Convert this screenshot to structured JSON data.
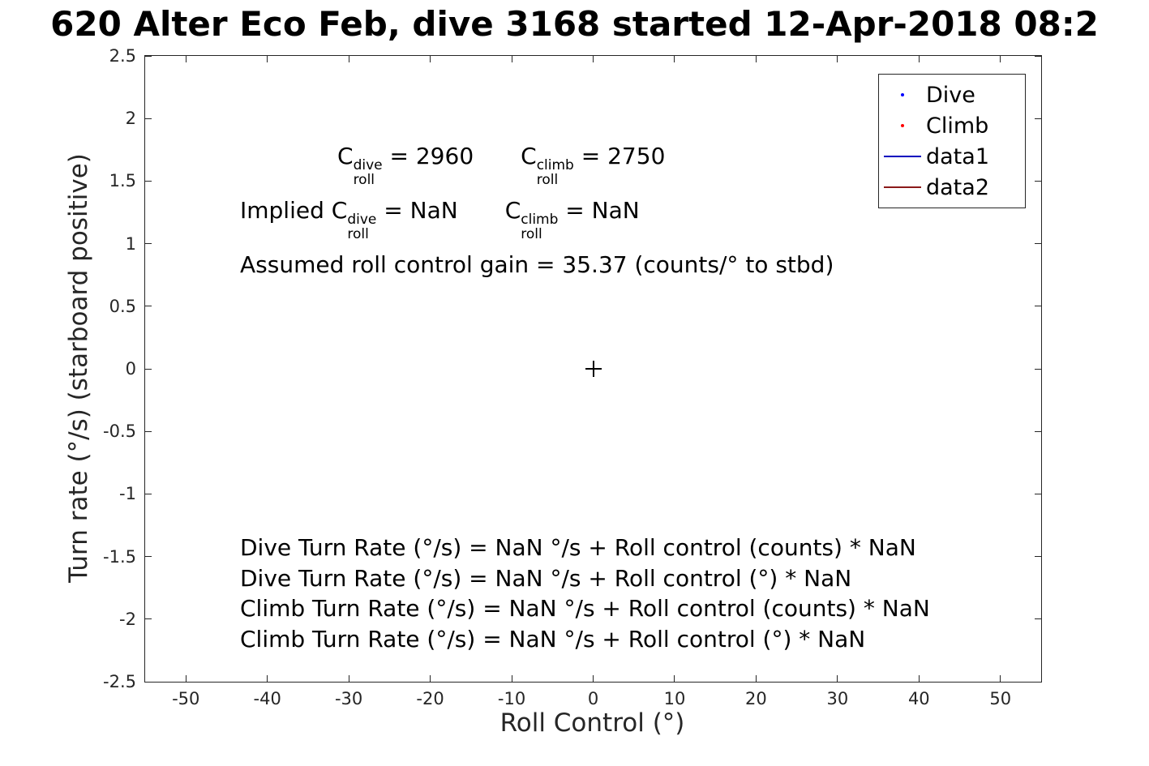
{
  "chart_data": {
    "type": "scatter",
    "title": "620 Alter Eco Feb, dive 3168 started 12-Apr-2018 08:2",
    "xlabel": "Roll Control (°)",
    "ylabel": "Turn rate (°/s) (starboard positive)",
    "xlim": [
      -55,
      55
    ],
    "ylim": [
      -2.5,
      2.5
    ],
    "xticks": [
      -50,
      -40,
      -30,
      -20,
      -10,
      0,
      10,
      20,
      30,
      40,
      50
    ],
    "yticks": [
      -2.5,
      -2,
      -1.5,
      -1,
      -0.5,
      0,
      0.5,
      1,
      1.5,
      2,
      2.5
    ],
    "grid": false,
    "axis_color": "#262626",
    "legend": {
      "position": "top-right",
      "entries": [
        {
          "label": "Dive",
          "swatch": "dot",
          "color": "#0000ff"
        },
        {
          "label": "Climb",
          "swatch": "dot",
          "color": "#ff0000"
        },
        {
          "label": "data1",
          "swatch": "line",
          "color": "#0000bf"
        },
        {
          "label": "data2",
          "swatch": "line",
          "color": "#8b1a1a"
        }
      ]
    },
    "series": [
      {
        "name": "Dive",
        "type": "scatter",
        "color": "#0000ff",
        "points": []
      },
      {
        "name": "Climb",
        "type": "scatter",
        "color": "#ff0000",
        "points": []
      },
      {
        "name": "data1",
        "type": "line",
        "color": "#0000bf",
        "points": []
      },
      {
        "name": "data2",
        "type": "line",
        "color": "#8b1a1a",
        "points": []
      }
    ],
    "reference_markers": [
      {
        "shape": "plus",
        "x": 0,
        "y": 0,
        "color": "#000000"
      }
    ]
  },
  "annotations": {
    "coefficients": [
      {
        "tokens": [
          {
            "t": "supsub",
            "base": "C",
            "sup": "dive",
            "sub": "roll"
          },
          {
            "t": "text",
            "v": " = 2960"
          },
          {
            "t": "gap"
          },
          {
            "t": "supsub",
            "base": "C",
            "sup": "climb",
            "sub": "roll"
          },
          {
            "t": "text",
            "v": " = 2750"
          }
        ]
      },
      {
        "tokens": [
          {
            "t": "text",
            "v": "Implied "
          },
          {
            "t": "supsub",
            "base": "C",
            "sup": "dive",
            "sub": "roll"
          },
          {
            "t": "text",
            "v": " = NaN"
          },
          {
            "t": "gap"
          },
          {
            "t": "supsub",
            "base": "C",
            "sup": "climb",
            "sub": "roll"
          },
          {
            "t": "text",
            "v": " = NaN"
          }
        ]
      },
      {
        "tokens": [
          {
            "t": "text",
            "v": "Assumed roll control gain = 35.37 (counts/° to stbd)"
          }
        ]
      }
    ],
    "equations": [
      "Dive Turn Rate (°/s) = NaN °/s + Roll control (counts) * NaN",
      "Dive Turn Rate (°/s) = NaN °/s + Roll control (°) * NaN",
      "Climb Turn Rate (°/s) = NaN °/s + Roll control (counts) * NaN",
      "Climb Turn Rate (°/s) = NaN °/s + Roll control (°) * NaN"
    ]
  }
}
